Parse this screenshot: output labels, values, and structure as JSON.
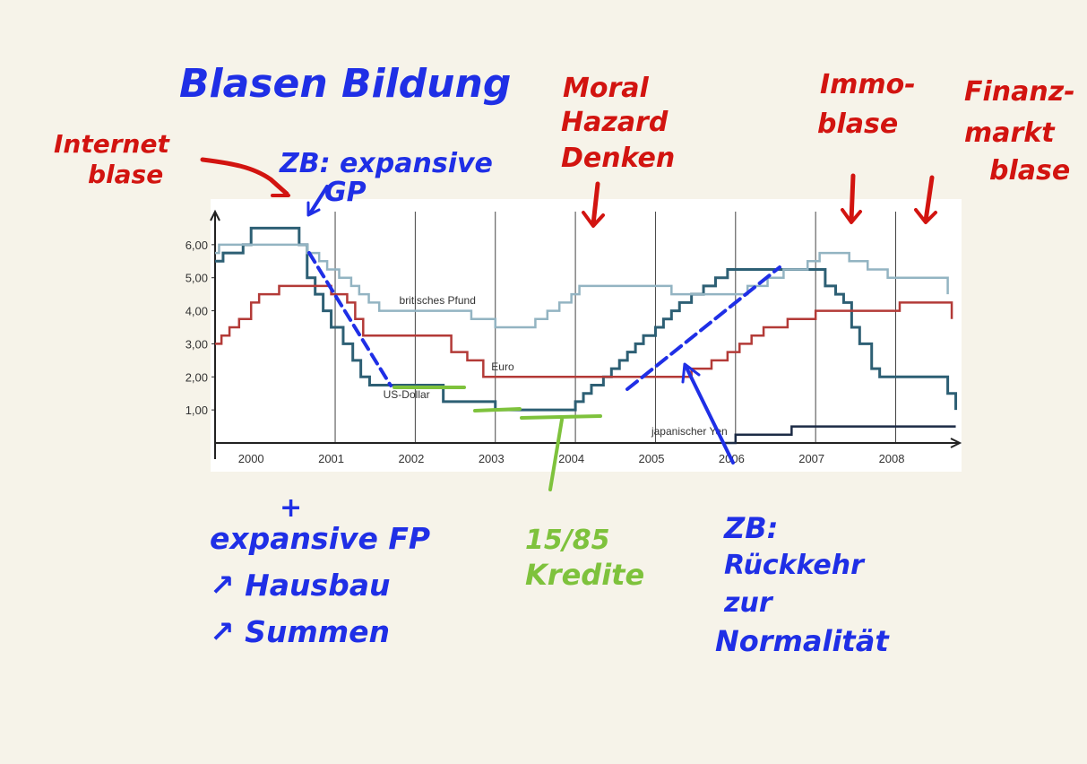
{
  "colors": {
    "background": "#f6f3e9",
    "panel": "#ffffff",
    "usd": "#2d5f74",
    "gbp": "#93b4c2",
    "eur": "#b33a37",
    "jpy": "#1c2b45",
    "ink_blue": "#1f2fe6",
    "ink_red": "#d21410",
    "ink_green": "#7ec23c"
  },
  "chart_data": {
    "type": "line",
    "step": true,
    "x_categories": [
      "2000",
      "2001",
      "2002",
      "2003",
      "2004",
      "2005",
      "2006",
      "2007",
      "2008"
    ],
    "xlim": [
      2000.0,
      2009.3
    ],
    "ylim": [
      0,
      7.0
    ],
    "y_ticks": [
      "1,00",
      "2,00",
      "3,00",
      "4,00",
      "5,00",
      "6,00"
    ],
    "grid": "vertical",
    "series": [
      {
        "name": "US-Dollar",
        "color_key": "usd",
        "points": [
          [
            2000.0,
            5.5
          ],
          [
            2000.1,
            5.75
          ],
          [
            2000.35,
            6.0
          ],
          [
            2000.45,
            6.5
          ],
          [
            2001.05,
            6.5
          ],
          [
            2001.05,
            6.0
          ],
          [
            2001.15,
            5.0
          ],
          [
            2001.25,
            4.5
          ],
          [
            2001.35,
            4.0
          ],
          [
            2001.45,
            3.5
          ],
          [
            2001.6,
            3.0
          ],
          [
            2001.72,
            2.5
          ],
          [
            2001.82,
            2.0
          ],
          [
            2001.93,
            1.75
          ],
          [
            2002.85,
            1.75
          ],
          [
            2002.85,
            1.25
          ],
          [
            2003.5,
            1.25
          ],
          [
            2003.5,
            1.0
          ],
          [
            2004.45,
            1.0
          ],
          [
            2004.5,
            1.25
          ],
          [
            2004.6,
            1.5
          ],
          [
            2004.7,
            1.75
          ],
          [
            2004.85,
            2.0
          ],
          [
            2004.95,
            2.25
          ],
          [
            2005.05,
            2.5
          ],
          [
            2005.15,
            2.75
          ],
          [
            2005.25,
            3.0
          ],
          [
            2005.35,
            3.25
          ],
          [
            2005.5,
            3.5
          ],
          [
            2005.6,
            3.75
          ],
          [
            2005.7,
            4.0
          ],
          [
            2005.8,
            4.25
          ],
          [
            2005.95,
            4.5
          ],
          [
            2006.1,
            4.75
          ],
          [
            2006.25,
            5.0
          ],
          [
            2006.4,
            5.25
          ],
          [
            2007.6,
            5.25
          ],
          [
            2007.62,
            4.75
          ],
          [
            2007.75,
            4.5
          ],
          [
            2007.85,
            4.25
          ],
          [
            2007.95,
            3.5
          ],
          [
            2008.05,
            3.0
          ],
          [
            2008.2,
            2.25
          ],
          [
            2008.3,
            2.0
          ],
          [
            2009.1,
            2.0
          ],
          [
            2009.15,
            1.5
          ],
          [
            2009.25,
            1.0
          ]
        ]
      },
      {
        "name": "britisches Pfund",
        "color_key": "gbp",
        "points": [
          [
            2000.0,
            5.75
          ],
          [
            2000.05,
            6.0
          ],
          [
            2001.05,
            6.0
          ],
          [
            2001.15,
            5.75
          ],
          [
            2001.3,
            5.5
          ],
          [
            2001.4,
            5.25
          ],
          [
            2001.55,
            5.0
          ],
          [
            2001.7,
            4.75
          ],
          [
            2001.8,
            4.5
          ],
          [
            2001.92,
            4.25
          ],
          [
            2002.05,
            4.0
          ],
          [
            2003.1,
            4.0
          ],
          [
            2003.2,
            3.75
          ],
          [
            2003.5,
            3.5
          ],
          [
            2003.9,
            3.5
          ],
          [
            2004.0,
            3.75
          ],
          [
            2004.15,
            4.0
          ],
          [
            2004.3,
            4.25
          ],
          [
            2004.45,
            4.5
          ],
          [
            2004.55,
            4.75
          ],
          [
            2005.65,
            4.75
          ],
          [
            2005.7,
            4.5
          ],
          [
            2006.55,
            4.5
          ],
          [
            2006.65,
            4.75
          ],
          [
            2006.9,
            5.0
          ],
          [
            2007.1,
            5.25
          ],
          [
            2007.4,
            5.5
          ],
          [
            2007.55,
            5.75
          ],
          [
            2007.85,
            5.75
          ],
          [
            2007.92,
            5.5
          ],
          [
            2008.15,
            5.25
          ],
          [
            2008.4,
            5.0
          ],
          [
            2009.05,
            5.0
          ],
          [
            2009.15,
            4.5
          ]
        ]
      },
      {
        "name": "Euro",
        "color_key": "eur",
        "points": [
          [
            2000.0,
            3.0
          ],
          [
            2000.08,
            3.25
          ],
          [
            2000.18,
            3.5
          ],
          [
            2000.3,
            3.75
          ],
          [
            2000.45,
            4.25
          ],
          [
            2000.55,
            4.5
          ],
          [
            2000.8,
            4.75
          ],
          [
            2001.35,
            4.75
          ],
          [
            2001.45,
            4.5
          ],
          [
            2001.65,
            4.25
          ],
          [
            2001.75,
            3.75
          ],
          [
            2001.85,
            3.25
          ],
          [
            2002.85,
            3.25
          ],
          [
            2002.95,
            2.75
          ],
          [
            2003.15,
            2.5
          ],
          [
            2003.35,
            2.0
          ],
          [
            2005.9,
            2.0
          ],
          [
            2005.95,
            2.25
          ],
          [
            2006.2,
            2.5
          ],
          [
            2006.4,
            2.75
          ],
          [
            2006.55,
            3.0
          ],
          [
            2006.7,
            3.25
          ],
          [
            2006.85,
            3.5
          ],
          [
            2007.15,
            3.75
          ],
          [
            2007.5,
            4.0
          ],
          [
            2008.5,
            4.0
          ],
          [
            2008.55,
            4.25
          ],
          [
            2009.15,
            4.25
          ],
          [
            2009.2,
            3.75
          ]
        ]
      },
      {
        "name": "japanischer Yen",
        "color_key": "jpy",
        "points": [
          [
            2006.35,
            0.0
          ],
          [
            2006.5,
            0.25
          ],
          [
            2007.15,
            0.25
          ],
          [
            2007.2,
            0.5
          ],
          [
            2009.25,
            0.5
          ]
        ]
      }
    ],
    "series_labels": [
      {
        "series": "britisches Pfund",
        "text": "britisches Pfund",
        "at": [
          2002.3,
          4.2
        ]
      },
      {
        "series": "Euro",
        "text": "Euro",
        "at": [
          2003.45,
          2.2
        ]
      },
      {
        "series": "US-Dollar",
        "text": "US-Dollar",
        "at": [
          2002.1,
          1.35
        ]
      },
      {
        "series": "japanischer Yen",
        "text": "japanischer Yen",
        "at": [
          2005.45,
          0.25
        ]
      }
    ]
  },
  "annotations": {
    "blue": {
      "title": "Blasen Bildung",
      "zb1": "ZB: expansive",
      "zb2": "GP",
      "fp1": "+",
      "fp2": "expansive FP",
      "fp3": "↗ Hausbau",
      "fp4": "↗ Summen",
      "zb3": "ZB:",
      "zb4": "Rückkehr",
      "zb5": "zur",
      "zb6": "Normalität"
    },
    "red": {
      "internet1": "Internet",
      "internet2": "blase",
      "moral1": "Moral",
      "moral2": "Hazard",
      "moral3": "Denken",
      "immo1": "Immo-",
      "immo2": "blase",
      "finanz1": "Finanz-",
      "finanz2": "markt",
      "finanz3": "blase"
    },
    "green": {
      "g1": "15/85",
      "g2": "Kredite"
    }
  }
}
